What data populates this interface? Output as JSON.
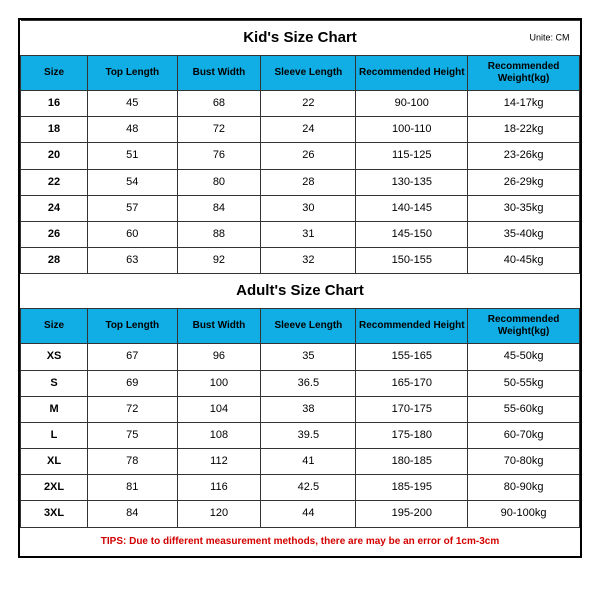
{
  "unite_label": "Unite: CM",
  "kids": {
    "title": "Kid's Size Chart",
    "columns": [
      "Size",
      "Top Length",
      "Bust Width",
      "Sleeve Length",
      "Recommended Height",
      "Recommended Weight(kg)"
    ],
    "rows": [
      [
        "16",
        "45",
        "68",
        "22",
        "90-100",
        "14-17kg"
      ],
      [
        "18",
        "48",
        "72",
        "24",
        "100-110",
        "18-22kg"
      ],
      [
        "20",
        "51",
        "76",
        "26",
        "115-125",
        "23-26kg"
      ],
      [
        "22",
        "54",
        "80",
        "28",
        "130-135",
        "26-29kg"
      ],
      [
        "24",
        "57",
        "84",
        "30",
        "140-145",
        "30-35kg"
      ],
      [
        "26",
        "60",
        "88",
        "31",
        "145-150",
        "35-40kg"
      ],
      [
        "28",
        "63",
        "92",
        "32",
        "150-155",
        "40-45kg"
      ]
    ]
  },
  "adults": {
    "title": "Adult's Size Chart",
    "columns": [
      "Size",
      "Top Length",
      "Bust Width",
      "Sleeve Length",
      "Recommended Height",
      "Recommended Weight(kg)"
    ],
    "rows": [
      [
        "XS",
        "67",
        "96",
        "35",
        "155-165",
        "45-50kg"
      ],
      [
        "S",
        "69",
        "100",
        "36.5",
        "165-170",
        "50-55kg"
      ],
      [
        "M",
        "72",
        "104",
        "38",
        "170-175",
        "55-60kg"
      ],
      [
        "L",
        "75",
        "108",
        "39.5",
        "175-180",
        "60-70kg"
      ],
      [
        "XL",
        "78",
        "112",
        "41",
        "180-185",
        "70-80kg"
      ],
      [
        "2XL",
        "81",
        "116",
        "42.5",
        "185-195",
        "80-90kg"
      ],
      [
        "3XL",
        "84",
        "120",
        "44",
        "195-200",
        "90-100kg"
      ]
    ]
  },
  "tips": "TIPS: Due to different measurement methods, there are may be an error of 1cm-3cm",
  "styling": {
    "header_bg": "#10aee5",
    "border_color": "#333333",
    "tips_color": "#d40000",
    "column_widths_pct": [
      12,
      16,
      15,
      17,
      20,
      20
    ]
  }
}
